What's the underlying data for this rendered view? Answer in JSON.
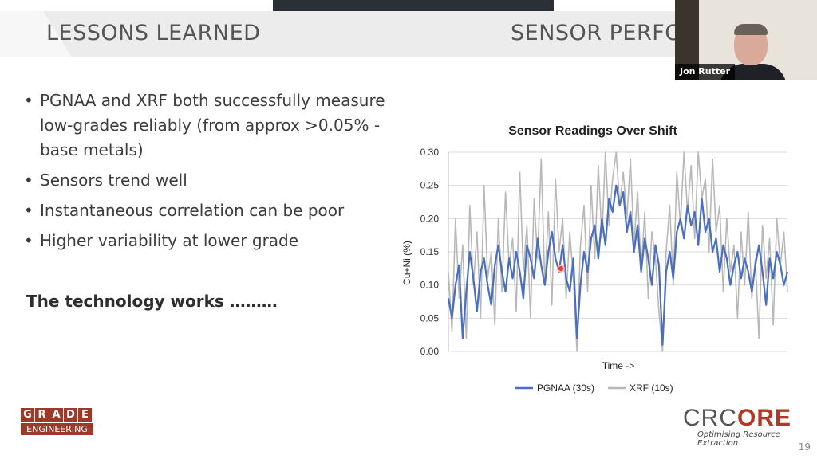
{
  "slide": {
    "title_left": "LESSONS LEARNED",
    "title_right": "SENSOR PERFO",
    "bullets": [
      "PGNAA and XRF both successfully measure low-grades reliably (from approx >0.05% - base metals)",
      "Sensors trend well",
      "Instantaneous correlation can be poor",
      "Higher variability at lower grade"
    ],
    "conclusion": "The technology works ………",
    "page_number": "19"
  },
  "video": {
    "participant_name": "Jon Rutter"
  },
  "logos": {
    "grade_letters": [
      "G",
      "R",
      "A",
      "D",
      "E"
    ],
    "grade_sub": "ENGINEERING",
    "crc_prefix": "CRC",
    "crc_suffix": "ORE",
    "crc_tagline": "Optimising Resource Extraction"
  },
  "colors": {
    "pgnaa": "#4a6fbf",
    "xrf": "#b8b8b8",
    "accent": "#9b3a2a"
  },
  "chart_data": {
    "type": "line",
    "title": "Sensor Readings Over Shift",
    "xlabel": "Time ->",
    "ylabel": "Cu+Ni (%)",
    "ylim": [
      0,
      0.3
    ],
    "yticks": [
      "0.00",
      "0.05",
      "0.10",
      "0.15",
      "0.20",
      "0.25",
      "0.30"
    ],
    "grid": true,
    "legend_position": "bottom",
    "series": [
      {
        "name": "PGNAA (30s)",
        "color": "#4a6fbf",
        "values": [
          0.08,
          0.05,
          0.1,
          0.13,
          0.02,
          0.09,
          0.15,
          0.11,
          0.06,
          0.12,
          0.14,
          0.1,
          0.07,
          0.13,
          0.16,
          0.12,
          0.09,
          0.14,
          0.11,
          0.15,
          0.12,
          0.08,
          0.16,
          0.14,
          0.11,
          0.17,
          0.13,
          0.1,
          0.15,
          0.18,
          0.14,
          0.12,
          0.16,
          0.11,
          0.09,
          0.14,
          0.02,
          0.1,
          0.15,
          0.12,
          0.17,
          0.19,
          0.14,
          0.2,
          0.16,
          0.23,
          0.21,
          0.25,
          0.22,
          0.24,
          0.18,
          0.21,
          0.15,
          0.19,
          0.12,
          0.17,
          0.14,
          0.1,
          0.16,
          0.13,
          0.01,
          0.12,
          0.15,
          0.11,
          0.18,
          0.2,
          0.17,
          0.22,
          0.19,
          0.21,
          0.16,
          0.23,
          0.18,
          0.2,
          0.15,
          0.17,
          0.12,
          0.16,
          0.14,
          0.1,
          0.13,
          0.15,
          0.11,
          0.14,
          0.12,
          0.09,
          0.13,
          0.16,
          0.12,
          0.07,
          0.14,
          0.11,
          0.15,
          0.13,
          0.1,
          0.12
        ]
      },
      {
        "name": "XRF (10s)",
        "color": "#b8b8b8",
        "values": [
          0.12,
          0.03,
          0.2,
          0.08,
          0.16,
          0.02,
          0.22,
          0.1,
          0.18,
          0.05,
          0.25,
          0.11,
          0.15,
          0.04,
          0.2,
          0.09,
          0.24,
          0.13,
          0.17,
          0.06,
          0.27,
          0.12,
          0.19,
          0.05,
          0.23,
          0.14,
          0.29,
          0.1,
          0.21,
          0.07,
          0.26,
          0.15,
          0.2,
          0.08,
          0.18,
          0.11,
          0.0,
          0.16,
          0.22,
          0.09,
          0.25,
          0.14,
          0.28,
          0.17,
          0.3,
          0.19,
          0.26,
          0.3,
          0.22,
          0.27,
          0.2,
          0.29,
          0.16,
          0.24,
          0.12,
          0.21,
          0.08,
          0.18,
          0.14,
          0.06,
          0.0,
          0.15,
          0.22,
          0.1,
          0.27,
          0.19,
          0.3,
          0.21,
          0.28,
          0.17,
          0.3,
          0.23,
          0.26,
          0.15,
          0.29,
          0.18,
          0.22,
          0.09,
          0.2,
          0.12,
          0.16,
          0.05,
          0.18,
          0.1,
          0.21,
          0.08,
          0.14,
          0.02,
          0.19,
          0.11,
          0.17,
          0.04,
          0.2,
          0.13,
          0.18,
          0.09
        ]
      }
    ]
  }
}
